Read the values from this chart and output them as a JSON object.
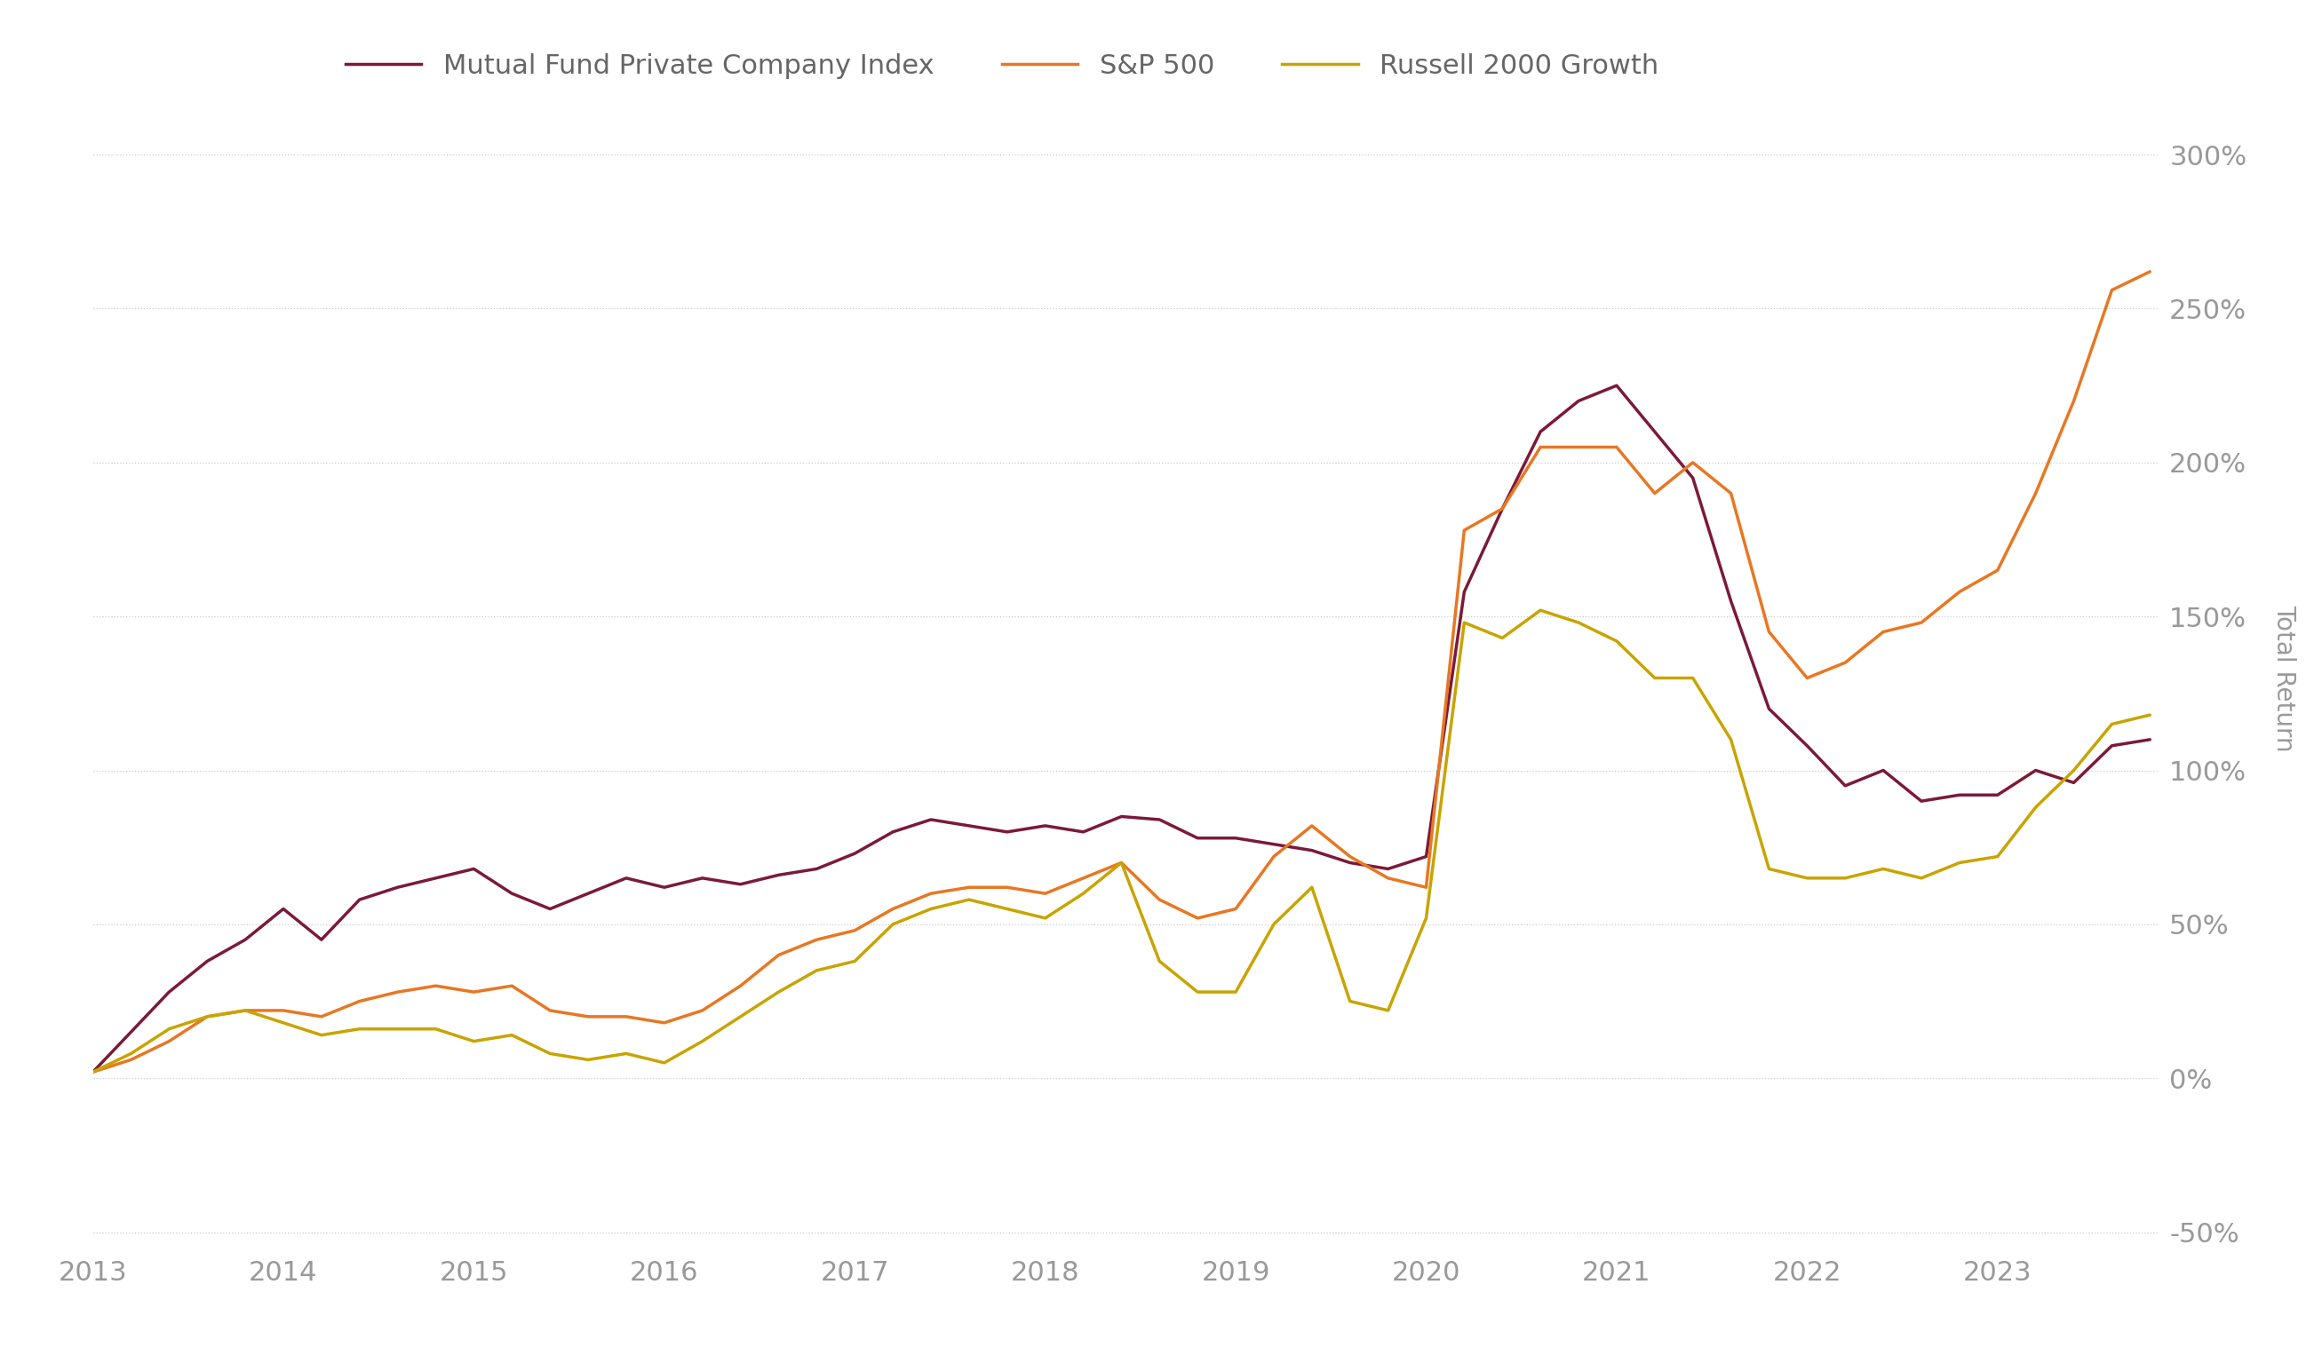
{
  "series": {
    "mutual_fund": {
      "label": "Mutual Fund Private Company Index",
      "color": "#7b1a38",
      "linewidth": 2.5,
      "x": [
        2013.0,
        2013.2,
        2013.4,
        2013.6,
        2013.8,
        2014.0,
        2014.2,
        2014.4,
        2014.6,
        2014.8,
        2015.0,
        2015.2,
        2015.4,
        2015.6,
        2015.8,
        2016.0,
        2016.2,
        2016.4,
        2016.6,
        2016.8,
        2017.0,
        2017.2,
        2017.4,
        2017.6,
        2017.8,
        2018.0,
        2018.2,
        2018.4,
        2018.6,
        2018.8,
        2019.0,
        2019.2,
        2019.4,
        2019.6,
        2019.8,
        2020.0,
        2020.2,
        2020.4,
        2020.6,
        2020.8,
        2021.0,
        2021.2,
        2021.4,
        2021.6,
        2021.8,
        2022.0,
        2022.2,
        2022.4,
        2022.6,
        2022.8,
        2023.0,
        2023.2,
        2023.4,
        2023.6,
        2023.8
      ],
      "y": [
        2,
        15,
        28,
        38,
        45,
        55,
        45,
        58,
        62,
        65,
        68,
        60,
        55,
        60,
        65,
        62,
        65,
        63,
        66,
        68,
        73,
        80,
        84,
        82,
        80,
        82,
        80,
        85,
        84,
        78,
        78,
        76,
        74,
        70,
        68,
        72,
        158,
        185,
        210,
        220,
        225,
        210,
        195,
        155,
        120,
        108,
        95,
        100,
        90,
        92,
        92,
        100,
        96,
        108,
        110
      ]
    },
    "sp500": {
      "label": "S&P 500",
      "color": "#e87722",
      "linewidth": 2.5,
      "x": [
        2013.0,
        2013.2,
        2013.4,
        2013.6,
        2013.8,
        2014.0,
        2014.2,
        2014.4,
        2014.6,
        2014.8,
        2015.0,
        2015.2,
        2015.4,
        2015.6,
        2015.8,
        2016.0,
        2016.2,
        2016.4,
        2016.6,
        2016.8,
        2017.0,
        2017.2,
        2017.4,
        2017.6,
        2017.8,
        2018.0,
        2018.2,
        2018.4,
        2018.6,
        2018.8,
        2019.0,
        2019.2,
        2019.4,
        2019.6,
        2019.8,
        2020.0,
        2020.2,
        2020.4,
        2020.6,
        2020.8,
        2021.0,
        2021.2,
        2021.4,
        2021.6,
        2021.8,
        2022.0,
        2022.2,
        2022.4,
        2022.6,
        2022.8,
        2023.0,
        2023.2,
        2023.4,
        2023.6,
        2023.8
      ],
      "y": [
        2,
        6,
        12,
        20,
        22,
        22,
        20,
        25,
        28,
        30,
        28,
        30,
        22,
        20,
        20,
        18,
        22,
        30,
        40,
        45,
        48,
        55,
        60,
        62,
        62,
        60,
        65,
        70,
        58,
        52,
        55,
        72,
        82,
        72,
        65,
        62,
        178,
        185,
        205,
        205,
        205,
        190,
        200,
        190,
        145,
        130,
        135,
        145,
        148,
        158,
        165,
        190,
        220,
        256,
        262
      ]
    },
    "russell": {
      "label": "Russell 2000 Growth",
      "color": "#c8a400",
      "linewidth": 2.5,
      "x": [
        2013.0,
        2013.2,
        2013.4,
        2013.6,
        2013.8,
        2014.0,
        2014.2,
        2014.4,
        2014.6,
        2014.8,
        2015.0,
        2015.2,
        2015.4,
        2015.6,
        2015.8,
        2016.0,
        2016.2,
        2016.4,
        2016.6,
        2016.8,
        2017.0,
        2017.2,
        2017.4,
        2017.6,
        2017.8,
        2018.0,
        2018.2,
        2018.4,
        2018.6,
        2018.8,
        2019.0,
        2019.2,
        2019.4,
        2019.6,
        2019.8,
        2020.0,
        2020.2,
        2020.4,
        2020.6,
        2020.8,
        2021.0,
        2021.2,
        2021.4,
        2021.6,
        2021.8,
        2022.0,
        2022.2,
        2022.4,
        2022.6,
        2022.8,
        2023.0,
        2023.2,
        2023.4,
        2023.6,
        2023.8
      ],
      "y": [
        2,
        8,
        16,
        20,
        22,
        18,
        14,
        16,
        16,
        16,
        12,
        14,
        8,
        6,
        8,
        5,
        12,
        20,
        28,
        35,
        38,
        50,
        55,
        58,
        55,
        52,
        60,
        70,
        38,
        28,
        28,
        50,
        62,
        25,
        22,
        52,
        148,
        143,
        152,
        148,
        142,
        130,
        130,
        110,
        68,
        65,
        65,
        68,
        65,
        70,
        72,
        88,
        100,
        115,
        118
      ]
    }
  },
  "xlim": [
    2013.0,
    2023.85
  ],
  "ylim": [
    -55,
    315
  ],
  "yticks": [
    -50,
    0,
    50,
    100,
    150,
    200,
    250,
    300
  ],
  "ytick_labels": [
    "-50%",
    "0%",
    "50%",
    "100%",
    "150%",
    "200%",
    "250%",
    "300%"
  ],
  "xticks": [
    2013,
    2014,
    2015,
    2016,
    2017,
    2018,
    2019,
    2020,
    2021,
    2022,
    2023
  ],
  "xtick_labels": [
    "2013",
    "2014",
    "2015",
    "2016",
    "2017",
    "2018",
    "2019",
    "2020",
    "2021",
    "2022",
    "2023"
  ],
  "ylabel": "Total Return",
  "background_color": "#ffffff",
  "grid_color": "#cccccc",
  "tick_color": "#999999",
  "label_color": "#666666",
  "legend_ncol": 3,
  "tick_fontsize": 22,
  "ylabel_fontsize": 20,
  "legend_fontsize": 22
}
